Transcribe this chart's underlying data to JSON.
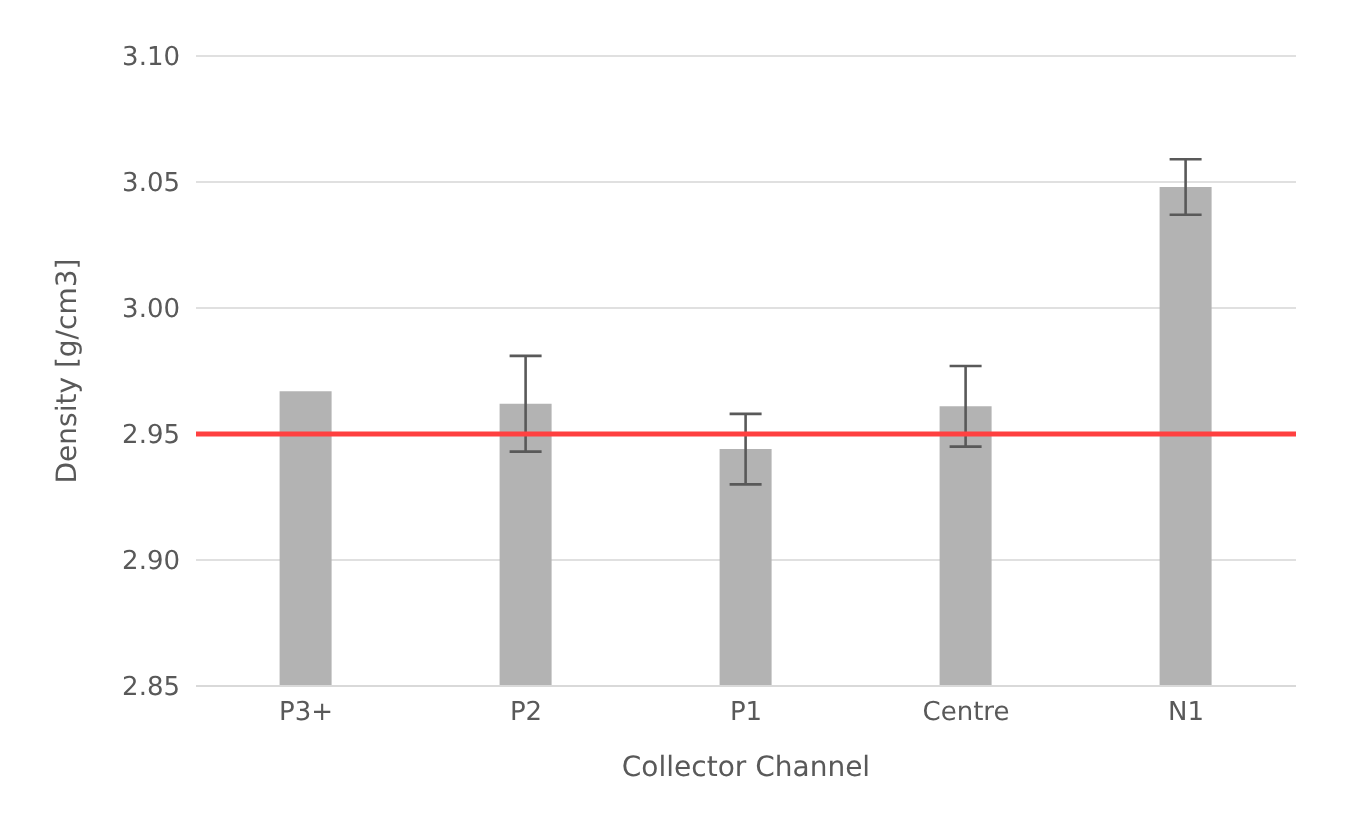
{
  "chart_data": {
    "type": "bar",
    "xlabel": "Collector Channel",
    "ylabel": "Density [g/cm3]",
    "categories": [
      "P3+",
      "P2",
      "P1",
      "Centre",
      "N1"
    ],
    "values": [
      2.967,
      2.962,
      2.944,
      2.961,
      3.048
    ],
    "errors": [
      0,
      0.019,
      0.014,
      0.016,
      0.011
    ],
    "color": "#b3b3b3",
    "ylim": [
      2.85,
      3.1
    ],
    "yticks": [
      2.85,
      {
        "value": 2.9,
        "label": "2.90"
      },
      2.95,
      {
        "value": 3.0,
        "label": "3.00"
      },
      3.05,
      {
        "value": 3.1,
        "label": "3.10"
      }
    ],
    "grid": "y",
    "ref_lines": [
      {
        "axis": "y",
        "value": 2.95,
        "color": "#ff4040"
      }
    ]
  }
}
